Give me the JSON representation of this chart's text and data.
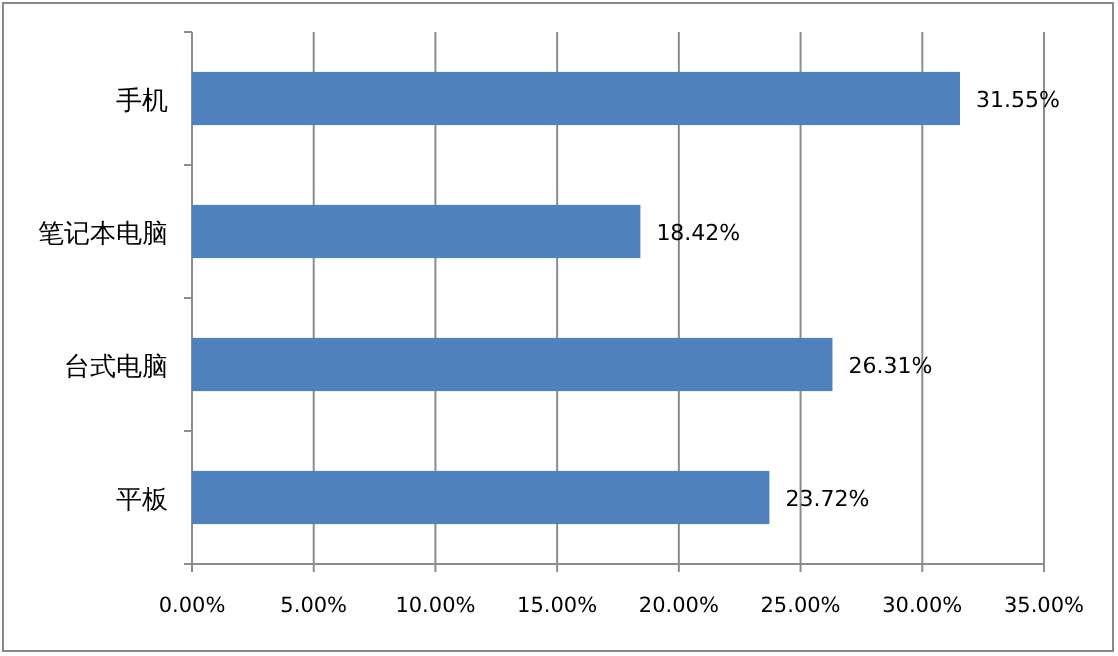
{
  "chart_data": {
    "type": "bar",
    "orientation": "horizontal",
    "categories": [
      "手机",
      "笔记本电脑",
      "台式电脑",
      "平板"
    ],
    "values": [
      31.55,
      18.42,
      26.31,
      23.72
    ],
    "value_labels": [
      "31.55%",
      "18.42%",
      "26.31%",
      "23.72%"
    ],
    "color": "#4f81bd",
    "xlim": [
      0,
      35
    ],
    "xticks": [
      {
        "value": 0,
        "label": "0.00%"
      },
      {
        "value": 5,
        "label": "5.00%"
      },
      {
        "value": 10,
        "label": "10.00%"
      },
      {
        "value": 15,
        "label": "15.00%"
      },
      {
        "value": 20,
        "label": "20.00%"
      },
      {
        "value": 25,
        "label": "25.00%"
      },
      {
        "value": 30,
        "label": "30.00%"
      },
      {
        "value": 35,
        "label": "35.00%"
      }
    ],
    "grid": "x"
  }
}
